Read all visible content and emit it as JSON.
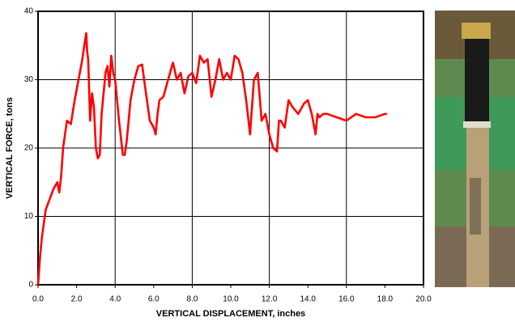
{
  "chart_data": {
    "type": "line",
    "x_label": "VERTICAL DISPLACEMENT, inches",
    "y_label": "VERTICAL FORCE, tons",
    "xlim": [
      0,
      20
    ],
    "ylim": [
      0,
      40
    ],
    "xticks": [
      {
        "value": 0,
        "label": "0.0"
      },
      {
        "value": 2,
        "label": "2.0"
      },
      {
        "value": 4,
        "label": "4.0"
      },
      {
        "value": 6,
        "label": "6.0"
      },
      {
        "value": 8,
        "label": "8.0"
      },
      {
        "value": 10,
        "label": "10.0"
      },
      {
        "value": 12,
        "label": "12.0"
      },
      {
        "value": 14,
        "label": "14.0"
      },
      {
        "value": 16,
        "label": "16.0"
      },
      {
        "value": 18,
        "label": "18.0"
      },
      {
        "value": 20,
        "label": "20.0"
      }
    ],
    "yticks": [
      0,
      10,
      20,
      30,
      40
    ],
    "grid": true,
    "color": "#ff0000",
    "x": [
      0,
      0.1,
      0.2,
      0.4,
      0.6,
      0.8,
      1.0,
      1.1,
      1.2,
      1.3,
      1.5,
      1.7,
      1.9,
      2.1,
      2.3,
      2.4,
      2.5,
      2.55,
      2.6,
      2.7,
      2.8,
      2.9,
      3.0,
      3.1,
      3.2,
      3.3,
      3.5,
      3.6,
      3.7,
      3.8,
      3.9,
      4.0,
      4.2,
      4.4,
      4.5,
      4.6,
      4.8,
      5.0,
      5.2,
      5.4,
      5.6,
      5.8,
      6.0,
      6.1,
      6.2,
      6.3,
      6.5,
      6.8,
      7.0,
      7.2,
      7.4,
      7.6,
      7.8,
      8.0,
      8.2,
      8.4,
      8.6,
      8.8,
      9.0,
      9.2,
      9.4,
      9.6,
      9.8,
      10.0,
      10.2,
      10.4,
      10.6,
      10.8,
      11.0,
      11.2,
      11.4,
      11.6,
      11.8,
      12.0,
      12.2,
      12.4,
      12.5,
      12.6,
      12.8,
      13.0,
      13.2,
      13.5,
      13.8,
      14.0,
      14.2,
      14.4,
      14.5,
      14.6,
      14.8,
      15.0,
      15.5,
      16.0,
      16.5,
      17.0,
      17.5,
      18.0,
      18.1
    ],
    "values": [
      0,
      4,
      7,
      11,
      12.5,
      14,
      15,
      13.5,
      16,
      20,
      24,
      23.5,
      27,
      30,
      33,
      35,
      36.8,
      34,
      33,
      24,
      28,
      26,
      20,
      18.5,
      19,
      25,
      31,
      32,
      29,
      33.5,
      31,
      30,
      24,
      19,
      19,
      21,
      27,
      30,
      32,
      32.2,
      28,
      24,
      23,
      22,
      25,
      27,
      27.5,
      30.5,
      32.5,
      30,
      31,
      28,
      30.5,
      31,
      29.5,
      33.5,
      32.5,
      33,
      27.5,
      30,
      33,
      30,
      31,
      30,
      33.5,
      33,
      31,
      27,
      22,
      30,
      31,
      24,
      25,
      22,
      20,
      19.5,
      24,
      24,
      23,
      27,
      26,
      25,
      26.5,
      27,
      25,
      22,
      25,
      24.5,
      25,
      25,
      24.5,
      24,
      25,
      24.5,
      24.5,
      25,
      25
    ]
  }
}
